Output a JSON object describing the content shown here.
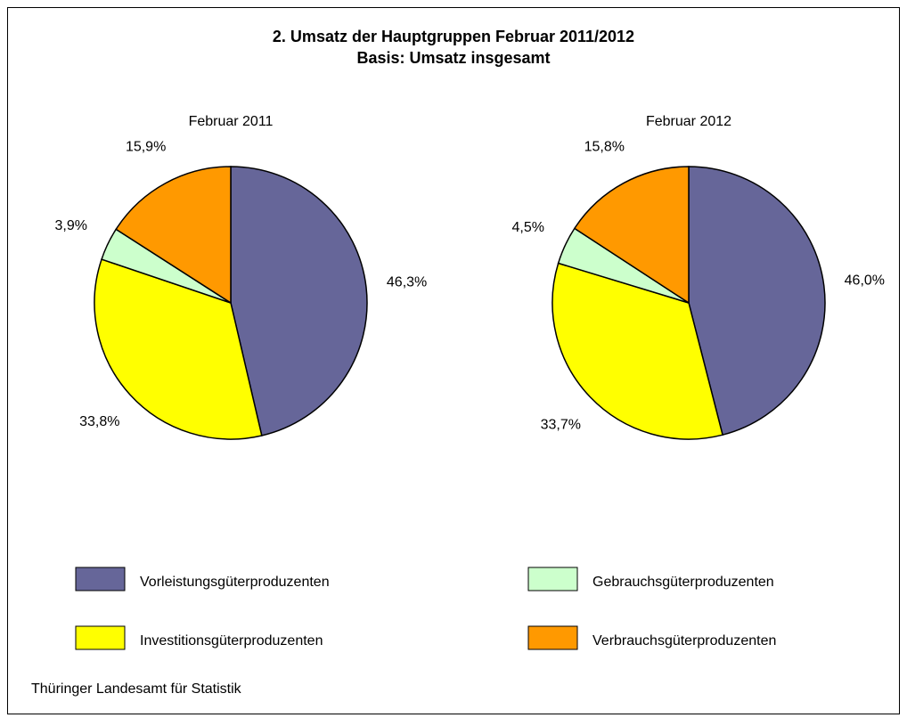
{
  "chart_data": {
    "type": "pie",
    "title": "2. Umsatz der Hauptgruppen Februar 2011/2012",
    "subtitle": "Basis: Umsatz insgesamt",
    "categories": [
      "Vorleistungsgüterproduzenten",
      "Investitionsgüterproduzenten",
      "Gebrauchsgüterproduzenten",
      "Verbrauchsgüterproduzenten"
    ],
    "colors": [
      "#666699",
      "#ffff00",
      "#ccffcc",
      "#ff9900"
    ],
    "pies": [
      {
        "title": "Februar 2011",
        "values": [
          46.3,
          33.8,
          3.9,
          15.9
        ],
        "value_labels": [
          "46,3%",
          "33,8%",
          "3,9%",
          "15,9%"
        ]
      },
      {
        "title": "Februar 2012",
        "values": [
          46.0,
          33.7,
          4.5,
          15.8
        ],
        "value_labels": [
          "46,0%",
          "33,7%",
          "4,5%",
          "15,8%"
        ]
      }
    ]
  },
  "source": "Thüringer Landesamt für Statistik"
}
